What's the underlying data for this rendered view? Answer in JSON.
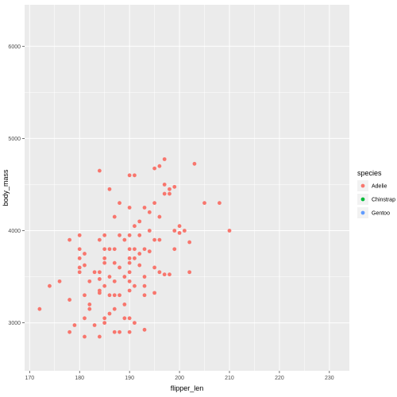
{
  "chart_data": {
    "type": "scatter",
    "title": "",
    "xlabel": "flipper_len",
    "ylabel": "body_mass",
    "xlim": [
      169,
      234
    ],
    "ylim": [
      2480,
      6450
    ],
    "x_ticks": [
      170,
      180,
      190,
      200,
      210,
      220,
      230
    ],
    "y_ticks": [
      3000,
      4000,
      5000,
      6000
    ],
    "grid": true,
    "legend_placement": "right",
    "legend": {
      "title": "species",
      "entries": [
        {
          "label": "Adelie",
          "color": "#F8766D"
        },
        {
          "label": "Chinstrap",
          "color": "#00BA38"
        },
        {
          "label": "Gentoo",
          "color": "#619CFF"
        }
      ]
    },
    "series": [
      {
        "name": "Adelie",
        "color": "#F8766D",
        "points": [
          [
            172,
            3150
          ],
          [
            174,
            3400
          ],
          [
            176,
            3450
          ],
          [
            178,
            3900
          ],
          [
            178,
            3250
          ],
          [
            178,
            2900
          ],
          [
            179,
            2975
          ],
          [
            180,
            3950
          ],
          [
            180,
            3800
          ],
          [
            180,
            3700
          ],
          [
            180,
            3600
          ],
          [
            180,
            3550
          ],
          [
            181,
            3750
          ],
          [
            181,
            3625
          ],
          [
            181,
            3300
          ],
          [
            181,
            3050
          ],
          [
            181,
            2850
          ],
          [
            182,
            3450
          ],
          [
            182,
            3200
          ],
          [
            182,
            3150
          ],
          [
            183,
            3550
          ],
          [
            183,
            2975
          ],
          [
            184,
            4650
          ],
          [
            184,
            3900
          ],
          [
            184,
            3550
          ],
          [
            184,
            3475
          ],
          [
            184,
            3350
          ],
          [
            184,
            3325
          ],
          [
            184,
            2850
          ],
          [
            185,
            3950
          ],
          [
            185,
            3800
          ],
          [
            185,
            3700
          ],
          [
            185,
            3650
          ],
          [
            185,
            3400
          ],
          [
            185,
            3050
          ],
          [
            185,
            3000
          ],
          [
            186,
            4450
          ],
          [
            186,
            3800
          ],
          [
            186,
            3500
          ],
          [
            186,
            3300
          ],
          [
            186,
            3100
          ],
          [
            187,
            3800
          ],
          [
            187,
            3650
          ],
          [
            187,
            3450
          ],
          [
            187,
            3300
          ],
          [
            187,
            3150
          ],
          [
            187,
            2900
          ],
          [
            187,
            4150
          ],
          [
            188,
            4300
          ],
          [
            188,
            3600
          ],
          [
            188,
            3300
          ],
          [
            188,
            2900
          ],
          [
            188,
            3950
          ],
          [
            189,
            3900
          ],
          [
            189,
            3500
          ],
          [
            189,
            3200
          ],
          [
            189,
            3050
          ],
          [
            190,
            4600
          ],
          [
            190,
            4250
          ],
          [
            190,
            3950
          ],
          [
            190,
            3800
          ],
          [
            190,
            3700
          ],
          [
            190,
            3650
          ],
          [
            190,
            3550
          ],
          [
            190,
            3450
          ],
          [
            190,
            3350
          ],
          [
            190,
            3050
          ],
          [
            190,
            2900
          ],
          [
            191,
            4600
          ],
          [
            191,
            4050
          ],
          [
            191,
            3800
          ],
          [
            191,
            3700
          ],
          [
            191,
            3400
          ],
          [
            191,
            3000
          ],
          [
            192,
            4100
          ],
          [
            192,
            3950
          ],
          [
            192,
            3750
          ],
          [
            192,
            3625
          ],
          [
            193,
            4250
          ],
          [
            193,
            3800
          ],
          [
            193,
            3500
          ],
          [
            193,
            3400
          ],
          [
            193,
            3300
          ],
          [
            193,
            2925
          ],
          [
            194,
            4200
          ],
          [
            194,
            4000
          ],
          [
            194,
            3775
          ],
          [
            195,
            4675
          ],
          [
            195,
            4300
          ],
          [
            195,
            3900
          ],
          [
            195,
            3600
          ],
          [
            195,
            3325
          ],
          [
            196,
            4700
          ],
          [
            196,
            4150
          ],
          [
            196,
            3900
          ],
          [
            196,
            3550
          ],
          [
            197,
            4775
          ],
          [
            197,
            4500
          ],
          [
            197,
            4400
          ],
          [
            197,
            3525
          ],
          [
            198,
            4450
          ],
          [
            198,
            4400
          ],
          [
            198,
            3525
          ],
          [
            199,
            4475
          ],
          [
            199,
            4000
          ],
          [
            199,
            3800
          ],
          [
            200,
            4050
          ],
          [
            200,
            3975
          ],
          [
            201,
            4000
          ],
          [
            202,
            3875
          ],
          [
            202,
            3550
          ],
          [
            203,
            4725
          ],
          [
            205,
            4300
          ],
          [
            208,
            4300
          ],
          [
            210,
            4000
          ]
        ]
      }
    ]
  }
}
